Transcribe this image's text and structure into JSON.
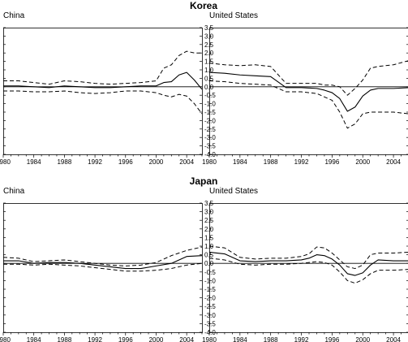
{
  "chart_data": [
    {
      "type": "line",
      "group": "Korea",
      "title": "China",
      "x": [
        1980,
        1982,
        1984,
        1986,
        1988,
        1990,
        1992,
        1994,
        1996,
        1998,
        2000,
        2001,
        2002,
        2003,
        2004,
        2005,
        2006
      ],
      "series": [
        {
          "role": "estimate",
          "values": [
            0.05,
            0.05,
            0.0,
            -0.05,
            0.05,
            0.0,
            -0.05,
            -0.05,
            0.0,
            0.05,
            0.05,
            0.25,
            0.3,
            0.7,
            0.85,
            0.4,
            -0.15
          ]
        },
        {
          "role": "upper",
          "values": [
            0.35,
            0.35,
            0.25,
            0.15,
            0.35,
            0.3,
            0.2,
            0.15,
            0.2,
            0.25,
            0.35,
            1.1,
            1.3,
            1.85,
            2.1,
            2.0,
            2.0
          ]
        },
        {
          "role": "lower",
          "values": [
            -0.25,
            -0.25,
            -0.3,
            -0.3,
            -0.25,
            -0.35,
            -0.4,
            -0.35,
            -0.25,
            -0.25,
            -0.35,
            -0.5,
            -0.6,
            -0.45,
            -0.55,
            -1.0,
            -1.6
          ]
        }
      ],
      "xticks": [
        1980,
        1984,
        1988,
        1992,
        1996,
        2000,
        2004
      ],
      "yticks": [
        3.5,
        3.0,
        2.5,
        2.0,
        1.5,
        1.0,
        0.5,
        0.0,
        -0.5,
        -1.0,
        -1.5,
        -2.0,
        -2.5,
        -3.0,
        -3.5,
        -4.0
      ],
      "xlim": [
        1980,
        2006
      ],
      "ylim": [
        -4.0,
        3.5
      ]
    },
    {
      "type": "line",
      "group": "Korea",
      "title": "United States",
      "x": [
        1980,
        1982,
        1984,
        1986,
        1988,
        1990,
        1992,
        1994,
        1995,
        1996,
        1997,
        1998,
        1999,
        2000,
        2001,
        2002,
        2004,
        2006
      ],
      "series": [
        {
          "role": "estimate",
          "values": [
            0.85,
            0.8,
            0.7,
            0.65,
            0.6,
            -0.05,
            -0.05,
            -0.1,
            -0.2,
            -0.35,
            -0.7,
            -1.45,
            -1.2,
            -0.55,
            -0.2,
            -0.1,
            -0.1,
            -0.05
          ]
        },
        {
          "role": "upper",
          "values": [
            1.4,
            1.3,
            1.25,
            1.3,
            1.2,
            0.2,
            0.2,
            0.2,
            0.1,
            0.1,
            0.0,
            -0.5,
            -0.1,
            0.4,
            1.1,
            1.2,
            1.3,
            1.55
          ]
        },
        {
          "role": "lower",
          "values": [
            0.35,
            0.3,
            0.2,
            0.15,
            0.1,
            -0.3,
            -0.3,
            -0.4,
            -0.6,
            -0.8,
            -1.5,
            -2.45,
            -2.2,
            -1.6,
            -1.5,
            -1.5,
            -1.5,
            -1.6
          ]
        }
      ],
      "xticks": [
        1980,
        1984,
        1988,
        1992,
        1996,
        2000,
        2004
      ],
      "yticks": [
        3.5,
        3.0,
        2.5,
        2.0,
        1.5,
        1.0,
        0.5,
        0.0,
        -0.5,
        -1.0,
        -1.5,
        -2.0,
        -2.5,
        -3.0,
        -3.5,
        -4.0
      ],
      "xlim": [
        1980,
        2006
      ],
      "ylim": [
        -4.0,
        3.5
      ]
    },
    {
      "type": "line",
      "group": "Japan",
      "title": "China",
      "x": [
        1980,
        1982,
        1984,
        1986,
        1988,
        1990,
        1992,
        1994,
        1996,
        1998,
        2000,
        2002,
        2004,
        2006
      ],
      "series": [
        {
          "role": "estimate",
          "values": [
            0.15,
            0.15,
            0.0,
            0.05,
            0.05,
            0.0,
            -0.1,
            -0.2,
            -0.3,
            -0.3,
            -0.15,
            0.0,
            0.4,
            0.45
          ]
        },
        {
          "role": "upper",
          "values": [
            0.35,
            0.3,
            0.1,
            0.15,
            0.2,
            0.1,
            0.0,
            -0.1,
            -0.15,
            -0.1,
            0.05,
            0.45,
            0.75,
            0.95
          ]
        },
        {
          "role": "lower",
          "values": [
            -0.05,
            -0.05,
            -0.1,
            -0.05,
            -0.1,
            -0.15,
            -0.25,
            -0.35,
            -0.45,
            -0.45,
            -0.4,
            -0.3,
            -0.1,
            0.0
          ]
        }
      ],
      "xticks": [
        1980,
        1984,
        1988,
        1992,
        1996,
        2000,
        2004
      ],
      "yticks": [
        3.5,
        3.0,
        2.5,
        2.0,
        1.5,
        1.0,
        0.5,
        0.0,
        -0.5,
        -1.0,
        -1.5,
        -2.0,
        -2.5,
        -3.0,
        -3.5,
        -4.0
      ],
      "xlim": [
        1980,
        2006
      ],
      "ylim": [
        -4.0,
        3.5
      ]
    },
    {
      "type": "line",
      "group": "Japan",
      "title": "United States",
      "x": [
        1980,
        1982,
        1984,
        1986,
        1988,
        1990,
        1992,
        1993,
        1994,
        1995,
        1996,
        1997,
        1998,
        1999,
        2000,
        2001,
        2002,
        2004,
        2006
      ],
      "series": [
        {
          "role": "estimate",
          "values": [
            0.65,
            0.55,
            0.15,
            0.1,
            0.15,
            0.15,
            0.2,
            0.3,
            0.5,
            0.45,
            0.25,
            -0.1,
            -0.6,
            -0.7,
            -0.55,
            -0.1,
            0.2,
            0.15,
            0.15
          ]
        },
        {
          "role": "upper",
          "values": [
            1.0,
            0.9,
            0.35,
            0.25,
            0.3,
            0.3,
            0.4,
            0.55,
            0.95,
            0.9,
            0.6,
            0.2,
            -0.2,
            -0.3,
            -0.1,
            0.5,
            0.6,
            0.6,
            0.65
          ]
        },
        {
          "role": "lower",
          "values": [
            0.3,
            0.2,
            -0.05,
            -0.1,
            -0.05,
            -0.05,
            0.0,
            0.05,
            0.1,
            0.05,
            -0.1,
            -0.5,
            -1.0,
            -1.15,
            -0.95,
            -0.6,
            -0.4,
            -0.4,
            -0.35
          ]
        }
      ],
      "xticks": [
        1980,
        1984,
        1988,
        1992,
        1996,
        2000,
        2004
      ],
      "yticks": [
        3.5,
        3.0,
        2.5,
        2.0,
        1.5,
        1.0,
        0.5,
        0.0,
        -0.5,
        -1.0,
        -1.5,
        -2.0,
        -2.5,
        -3.0,
        -3.5,
        -4.0
      ],
      "xlim": [
        1980,
        2006
      ],
      "ylim": [
        -4.0,
        3.5
      ]
    }
  ],
  "headings": {
    "korea": "Korea",
    "japan": "Japan",
    "korea_left": "China",
    "korea_right": "United States",
    "japan_left": "China",
    "japan_right": "United States"
  },
  "colors": {
    "line": "#000000",
    "axis": "#000000",
    "background": "#ffffff"
  }
}
